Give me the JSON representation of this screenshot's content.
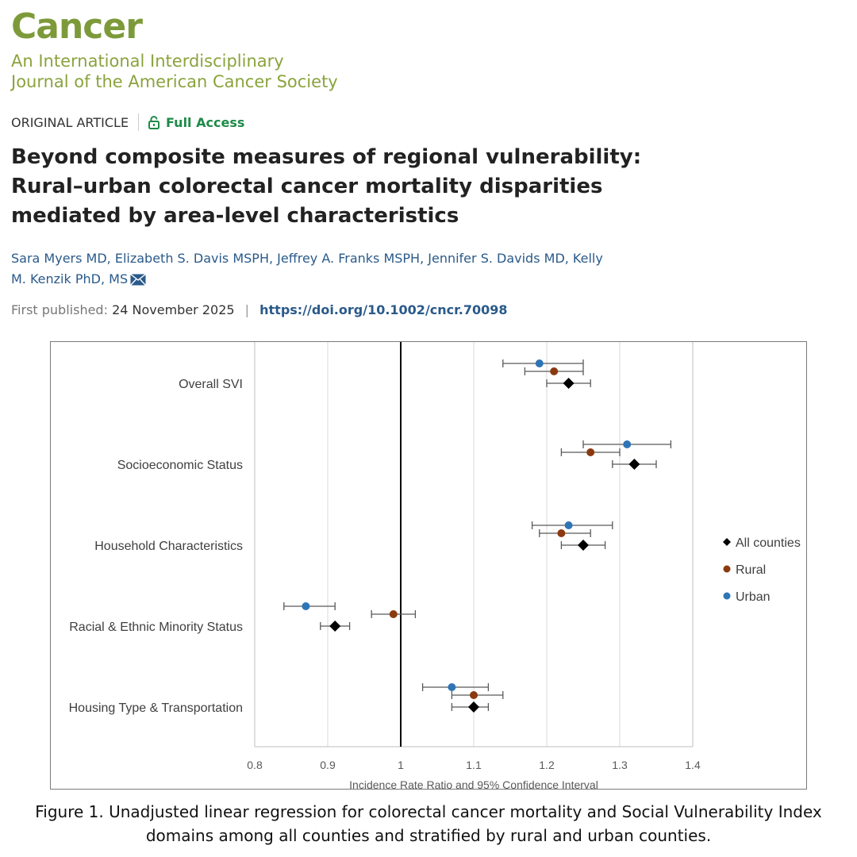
{
  "journal": {
    "name": "Cancer",
    "subtitle_line1": "An International Interdisciplinary",
    "subtitle_line2": "Journal of the American Cancer Society"
  },
  "article": {
    "type": "ORIGINAL ARTICLE",
    "access": "Full Access",
    "title": "Beyond composite measures of regional vulnerability: Rural–urban colorectal cancer mortality disparities mediated by area-level characteristics",
    "authors": "Sara Myers MD, Elizabeth S. Davis MSPH, Jeffrey A. Franks MSPH, Jennifer S. Davids MD, Kelly M. Kenzik PhD, MS",
    "published_label": "First published:",
    "published_date": "24 November 2025",
    "separator": "|",
    "doi": "https://doi.org/10.1002/cncr.70098"
  },
  "icons": {
    "access": "unlocked-padlock-icon",
    "email": "envelope-icon"
  },
  "colors": {
    "journal_green": "#7d9a3a",
    "access_green": "#1e8a48",
    "link_blue": "#2a5a8a",
    "all_counties": "#000000",
    "rural": "#8b3a10",
    "urban": "#2e75b6"
  },
  "caption": "Figure 1. Unadjusted linear regression for colorectal cancer mortality and Social Vulnerability Index domains among all counties and stratified by rural and urban counties.",
  "chart_data": {
    "type": "scatter",
    "subtype": "forest-plot",
    "title": "",
    "xlabel": "Incidence Rate Ratio and 95% Confidence Interval",
    "ylabel": "",
    "xlim": [
      0.8,
      1.4
    ],
    "xticks": [
      "0.8",
      "0.9",
      "1",
      "1.1",
      "1.2",
      "1.3",
      "1.4"
    ],
    "reference_line": 1,
    "grid": "vertical",
    "legend_position": "right",
    "categories": [
      "Overall SVI",
      "Socioeconomic Status",
      "Household Characteristics",
      "Racial & Ethnic Minority Status",
      "Housing Type & Transportation"
    ],
    "series": [
      {
        "name": "All counties",
        "marker": "diamond",
        "color": "#000000",
        "values": [
          1.23,
          1.32,
          1.25,
          0.91,
          1.1
        ],
        "lower": [
          1.2,
          1.29,
          1.22,
          0.89,
          1.07
        ],
        "upper": [
          1.26,
          1.35,
          1.28,
          0.93,
          1.12
        ]
      },
      {
        "name": "Rural",
        "marker": "circle",
        "color": "#8b3a10",
        "values": [
          1.21,
          1.26,
          1.22,
          0.99,
          1.1
        ],
        "lower": [
          1.17,
          1.22,
          1.19,
          0.96,
          1.07
        ],
        "upper": [
          1.25,
          1.3,
          1.26,
          1.02,
          1.14
        ]
      },
      {
        "name": "Urban",
        "marker": "circle",
        "color": "#2e75b6",
        "values": [
          1.19,
          1.31,
          1.23,
          0.87,
          1.07
        ],
        "lower": [
          1.14,
          1.25,
          1.18,
          0.84,
          1.03
        ],
        "upper": [
          1.25,
          1.37,
          1.29,
          0.91,
          1.12
        ]
      }
    ]
  }
}
